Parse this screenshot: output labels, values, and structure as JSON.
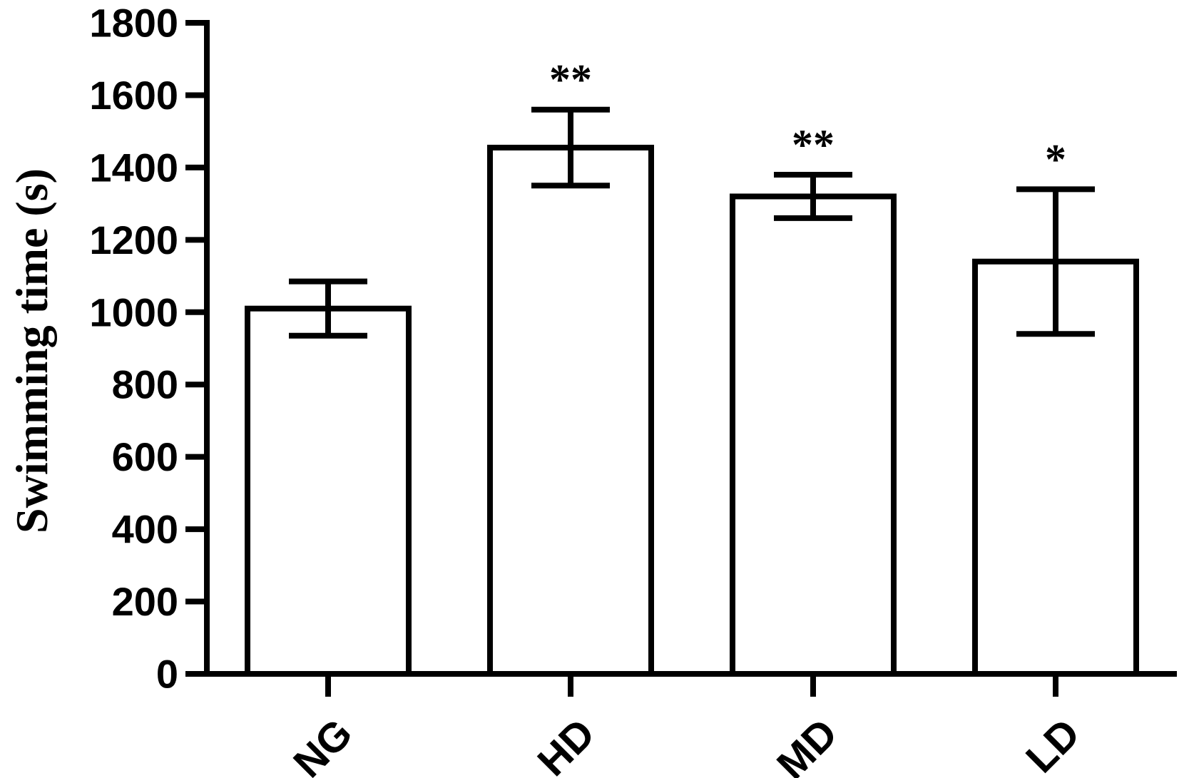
{
  "chart_data": {
    "type": "bar",
    "categories": [
      "NG",
      "HD",
      "MD",
      "LD"
    ],
    "values": [
      1010,
      1455,
      1320,
      1140
    ],
    "errors": [
      75,
      105,
      60,
      200
    ],
    "significance": [
      "",
      "**",
      "**",
      "*"
    ],
    "ylabel": "Swimming time (s)",
    "xlabel": "",
    "ylim": [
      0,
      1800
    ],
    "yticks": [
      0,
      200,
      400,
      600,
      800,
      1000,
      1200,
      1400,
      1600,
      1800
    ],
    "grid": false,
    "bar_fill": "#ffffff",
    "stroke_color": "#000000"
  }
}
